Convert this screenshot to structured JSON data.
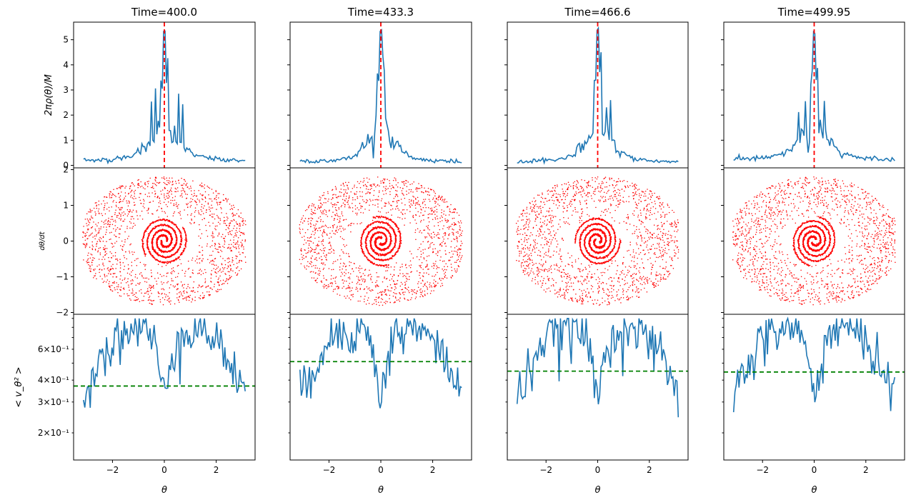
{
  "figure": {
    "titles": [
      "Time=400.0",
      "Time=433.3",
      "Time=466.6",
      "Time=499.95"
    ],
    "ylabels": [
      "2πρ(θ)/M",
      "dθ/dt",
      "< v_θ² >"
    ],
    "xlabel": "θ"
  },
  "chart_data": [
    {
      "type": "line",
      "row": "density",
      "ylabel": "2πρ(θ)/M",
      "xlim": [
        -3.5,
        3.5
      ],
      "ylim": [
        -0.1,
        5.7
      ],
      "yticks": [
        0,
        1,
        2,
        3,
        4,
        5
      ],
      "line_color": "#1f77b4",
      "marker_color": "#ff0000",
      "marker_x": 0,
      "panels": [
        {
          "title": "Time=400.0",
          "peak": 5.3,
          "side_peaks": [
            [
              -0.5,
              2.6
            ],
            [
              -0.35,
              3.0
            ],
            [
              0.55,
              2.9
            ],
            [
              0.7,
              2.5
            ]
          ],
          "width": 0.55,
          "base": 0.2
        },
        {
          "title": "Time=433.3",
          "peak": 5.4,
          "side_peaks": [
            [
              -0.2,
              2.1
            ],
            [
              0.15,
              2.4
            ]
          ],
          "width": 0.5,
          "base": 0.15
        },
        {
          "title": "Time=466.6",
          "peak": 5.45,
          "side_peaks": [
            [
              -0.15,
              2.0
            ],
            [
              0.35,
              2.4
            ],
            [
              0.5,
              2.5
            ]
          ],
          "width": 0.5,
          "base": 0.15
        },
        {
          "title": "Time=499.95",
          "peak": 5.3,
          "side_peaks": [
            [
              -0.35,
              2.5
            ],
            [
              0.4,
              2.5
            ],
            [
              -0.6,
              2.1
            ]
          ],
          "width": 0.55,
          "base": 0.25
        }
      ]
    },
    {
      "type": "scatter",
      "row": "phase_space",
      "ylabel": "dθ/dt",
      "xlim": [
        -3.5,
        3.5
      ],
      "ylim": [
        -2.05,
        2.05
      ],
      "yticks": [
        -2,
        -1,
        0,
        1,
        2
      ],
      "color": "#ff0000",
      "description_of_marks": "red spiral points around origin with surrounding halo of scattered points"
    },
    {
      "type": "line",
      "row": "velocity_dispersion",
      "ylabel": "< v_θ² >",
      "yscale": "log",
      "xlim": [
        -3.5,
        3.5
      ],
      "ylim": [
        0.14,
        0.95
      ],
      "yticks": [
        0.2,
        0.3,
        0.4,
        0.6
      ],
      "yticklabels": [
        "2×10⁻¹",
        "3×10⁻¹",
        "4×10⁻¹",
        "6×10⁻¹"
      ],
      "xticks": [
        -2,
        0,
        2
      ],
      "line_color": "#1f77b4",
      "mean_color": "#008000",
      "panels": [
        {
          "title": "Time=400.0",
          "mean": 0.37
        },
        {
          "title": "Time=433.3",
          "mean": 0.51
        },
        {
          "title": "Time=466.6",
          "mean": 0.45
        },
        {
          "title": "Time=499.95",
          "mean": 0.445
        }
      ]
    }
  ]
}
